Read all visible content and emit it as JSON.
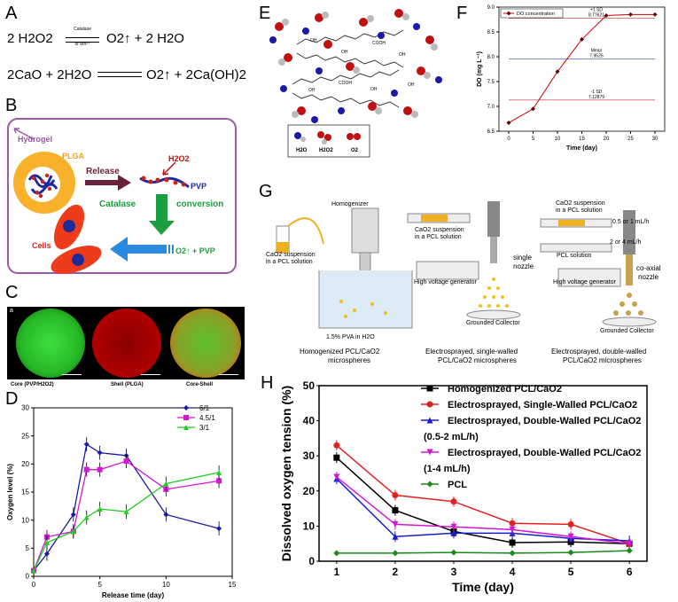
{
  "panels": {
    "A": "A",
    "B": "B",
    "C": "C",
    "D": "D",
    "E": "E",
    "F": "F",
    "G": "G",
    "H": "H"
  },
  "panelA": {
    "eq1_left": "2 H2O2",
    "eq1_right": "O2↑ + 2 H2O",
    "catalyst_top": "Catalase",
    "catalyst_bottom": "or Mn²⁺",
    "eq2_left": "2CaO + 2H2O",
    "eq2_right": "O2↑ + 2Ca(OH)2"
  },
  "panelB": {
    "hydrogel": "Hydrogel",
    "plga": "PLGA",
    "release": "Release",
    "h2o2": "H2O2",
    "pvp": "PVP",
    "catalase": "Catalase",
    "conversion": "conversion",
    "product": "O2↑ + PVP",
    "cells": "Cells"
  },
  "panelC": {
    "label_a": "a",
    "captions": [
      "Core (PVP/H2O2)",
      "Shell (PLGA)",
      "Core-Shell"
    ]
  },
  "panelE": {
    "labels": [
      "OH",
      "OH",
      "OH",
      "OH",
      "OH",
      "OH",
      "OH",
      "OH",
      "COOH",
      "COOH",
      "OH",
      "OH"
    ],
    "legend": [
      "H2O",
      "H2O2",
      "O2"
    ]
  },
  "panelG": {
    "homogenizer": "Homogenizer",
    "cao_pcl_1": "CaO2 suspension",
    "cao_pcl_1b": "in a PCL solution",
    "pva": "1.5% PVA in H2O",
    "cap1a": "Homogenized PCL/CaO2",
    "cap1b": "microspheres",
    "cao_pcl_2": "CaO2 suspension",
    "cao_pcl_2b": "in a PCL solution",
    "single": "single",
    "nozzle": "nozzle",
    "hv1": "High voltage generator",
    "gc1": "Grounded Collector",
    "cap2a": "Electrosprayed, single-walled",
    "cap2b": "PCL/CaO2 microspheres",
    "cao_pcl_3": "CaO2 suspension",
    "cao_pcl_3b": "in a PCL solution",
    "rate1": "0.5 or 1 mL/h",
    "rate2": "2 or 4 mL/h",
    "pcl_sol": "PCL solution",
    "coaxial": "co-axial",
    "nozzle2": "nozzle",
    "hv2": "High voltage generator",
    "gc2": "Grounded Collector",
    "cap3a": "Electrosprayed, double-walled",
    "cap3b": "PCL/CaO2 microspheres"
  },
  "chart_data": [
    {
      "id": "D",
      "type": "line",
      "xlabel": "Release time (day)",
      "ylabel": "Oxygen level (%)",
      "xlim": [
        0,
        15
      ],
      "ylim": [
        0,
        30
      ],
      "xticks": [
        0,
        5,
        10,
        15
      ],
      "yticks": [
        0,
        5,
        10,
        15,
        20,
        25,
        30
      ],
      "series": [
        {
          "name": "6/1",
          "color": "#1a1aa8",
          "marker": "diamond",
          "x": [
            0,
            1,
            3,
            4,
            5,
            7,
            10,
            14
          ],
          "y": [
            1,
            4,
            11,
            23.5,
            22,
            21.5,
            11,
            8.5
          ]
        },
        {
          "name": "4.5/1",
          "color": "#d416d4",
          "marker": "square",
          "x": [
            0,
            1,
            3,
            4,
            5,
            7,
            10,
            14
          ],
          "y": [
            1,
            7,
            8,
            19,
            19,
            20.5,
            15.5,
            17
          ]
        },
        {
          "name": "3/1",
          "color": "#22cc22",
          "marker": "triangle",
          "x": [
            0,
            1,
            3,
            4,
            5,
            7,
            10,
            14
          ],
          "y": [
            1,
            6,
            8,
            10.5,
            12,
            11.5,
            16.5,
            18.5
          ]
        }
      ]
    },
    {
      "id": "F",
      "type": "line",
      "title": "",
      "xlabel": "Time (day)",
      "ylabel": "DO (mg L⁻¹)",
      "xlim": [
        -2,
        32
      ],
      "ylim": [
        6.5,
        9.0
      ],
      "xticks": [
        0,
        5,
        10,
        15,
        20,
        25,
        30
      ],
      "yticks": [
        6.5,
        7.0,
        7.5,
        8.0,
        8.5,
        9.0
      ],
      "legend": "DO concentration",
      "annotations": [
        {
          "label": "+1 SD",
          "value": "8.77621",
          "y": 8.77621
        },
        {
          "label": "Mean",
          "value": "7.9525",
          "y": 7.9525
        },
        {
          "label": "-1 SD",
          "value": "7.12879",
          "y": 7.12879
        }
      ],
      "series": [
        {
          "name": "DO concentration",
          "color": "#cc0000",
          "x": [
            0,
            5,
            10,
            15,
            20,
            25,
            30
          ],
          "y": [
            6.67,
            6.95,
            7.7,
            8.35,
            8.83,
            8.85,
            8.85
          ]
        }
      ]
    },
    {
      "id": "H",
      "type": "line",
      "xlabel": "Time (day)",
      "ylabel": "Dissolved oxygen tension (%)",
      "xlim": [
        0.7,
        6.3
      ],
      "ylim": [
        0,
        50
      ],
      "xticks": [
        1,
        2,
        3,
        4,
        5,
        6
      ],
      "yticks": [
        0,
        10,
        20,
        30,
        40,
        50
      ],
      "series": [
        {
          "name": "Homogenized PCL/CaO2",
          "color": "#000000",
          "marker": "square",
          "x": [
            1,
            2,
            3,
            4,
            5,
            6
          ],
          "y": [
            29.5,
            14.5,
            8.5,
            5.3,
            5.5,
            5
          ]
        },
        {
          "name": "Electrosprayed, Single-Walled PCL/CaO2",
          "color": "#e32020",
          "marker": "circle",
          "x": [
            1,
            2,
            3,
            4,
            5,
            6
          ],
          "y": [
            33,
            18.8,
            17,
            10.8,
            10.5,
            5
          ]
        },
        {
          "name": "Electrosprayed, Double-Walled PCL/CaO2",
          "sub": "(0.5-2 mL/h)",
          "color": "#1a1ad0",
          "marker": "triangle",
          "x": [
            1,
            2,
            3,
            4,
            5,
            6
          ],
          "y": [
            23.5,
            7,
            8,
            8,
            6.5,
            5.8
          ]
        },
        {
          "name": "Electrosprayed, Double-Walled PCL/CaO2",
          "sub": "(1-4 mL/h)",
          "color": "#d416d4",
          "marker": "tri-down",
          "x": [
            1,
            2,
            3,
            4,
            5,
            6
          ],
          "y": [
            24,
            10.5,
            9.8,
            9,
            7,
            5
          ]
        },
        {
          "name": "PCL",
          "color": "#1a8a1a",
          "marker": "diamond",
          "x": [
            1,
            2,
            3,
            4,
            5,
            6
          ],
          "y": [
            2.3,
            2.3,
            2.5,
            2.3,
            2.5,
            3
          ]
        }
      ]
    }
  ]
}
